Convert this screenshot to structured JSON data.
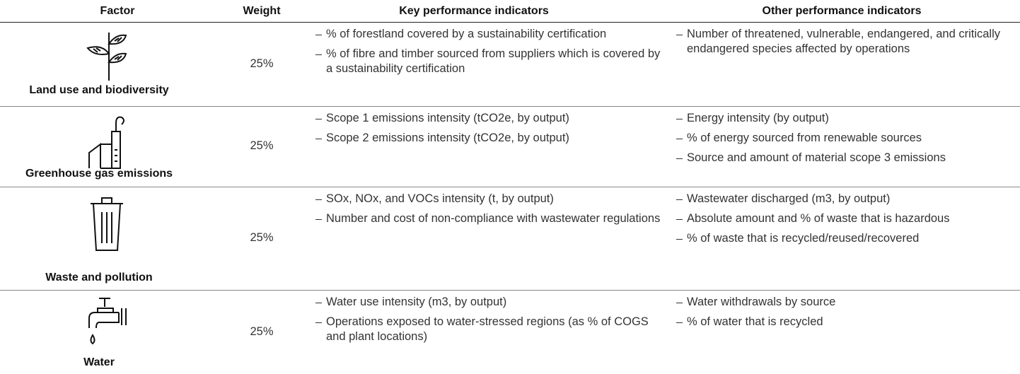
{
  "table": {
    "header": [
      "Factor",
      "Weight",
      "Key performance indicators",
      "Other performance indicators"
    ],
    "rows": [
      {
        "factor": "Land use and biodiversity",
        "weight": "25%",
        "kpis": [
          "% of forestland covered by a sustainability certification",
          "% of fibre and timber sourced from suppliers which is covered by a sustainability certification"
        ],
        "other": [
          "Number of threatened, vulnerable, endangered, and critically endangered species affected by operations"
        ]
      },
      {
        "factor": "Greenhouse gas emissions",
        "weight": "25%",
        "kpis": [
          "Scope 1 emissions intensity (tCO2e, by output)",
          "Scope 2 emissions intensity (tCO2e, by output)"
        ],
        "other": [
          "Energy intensity (by output)",
          "% of energy sourced from renewable sources",
          "Source and amount of material scope 3 emissions"
        ]
      },
      {
        "factor": "Waste and pollution",
        "weight": "25%",
        "kpis": [
          "SOx, NOx, and VOCs intensity (t, by output)",
          "Number and cost of non-compliance with wastewater regulations"
        ],
        "other": [
          "Wastewater discharged (m3, by output)",
          "Absolute amount and % of waste that is hazardous",
          "% of waste that is recycled/reused/recovered"
        ]
      },
      {
        "factor": "Water",
        "weight": "25%",
        "kpis": [
          "Water use intensity (m3, by output)",
          "Operations exposed to water-stressed regions (as % of COGS and plant locations)"
        ],
        "other": [
          "Water withdrawals by source",
          "% of water that is recycled"
        ]
      }
    ]
  }
}
